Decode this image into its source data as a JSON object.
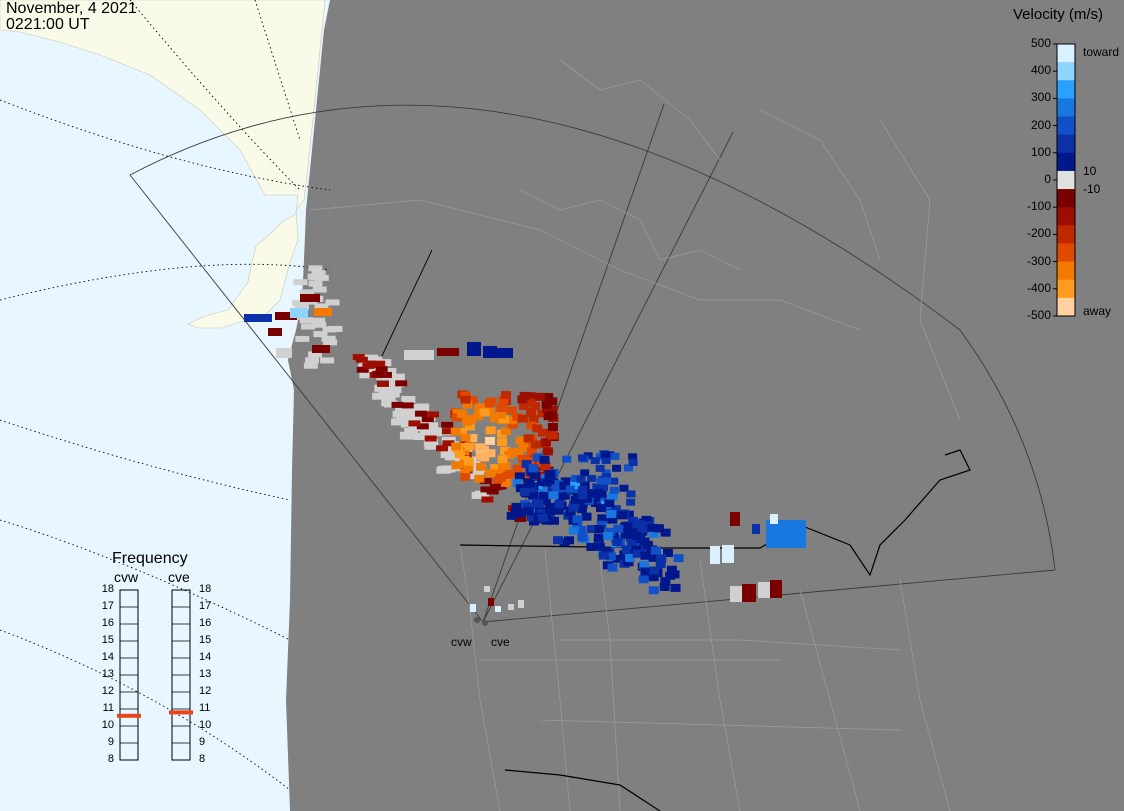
{
  "header": {
    "date": "November, 4 2021",
    "time": "0221:00 UT"
  },
  "legend": {
    "title": "Velocity (m/s)",
    "ticks": [
      "500",
      "400",
      "300",
      "200",
      "100",
      "0",
      "-100",
      "-200",
      "-300",
      "-400",
      "-500"
    ],
    "side_labels": {
      "toward": "toward",
      "away": "away",
      "pos_threshold": "10",
      "neg_threshold": "-10"
    },
    "colors_top_to_bottom": [
      "#d8f0ff",
      "#8fd4ff",
      "#2aa0ff",
      "#1878e0",
      "#1050c8",
      "#0b30a8",
      "#00188c",
      "#e0e0e0",
      "#7a0000",
      "#9c0e00",
      "#c02800",
      "#e04a00",
      "#f27a00",
      "#ff9c20",
      "#ffd0a0"
    ]
  },
  "frequency": {
    "title": "Frequency",
    "columns": [
      {
        "name": "cvw",
        "selected_mhz": 10.6
      },
      {
        "name": "cve",
        "selected_mhz": 10.8
      }
    ],
    "scale": [
      "18",
      "17",
      "16",
      "15",
      "14",
      "13",
      "12",
      "11",
      "10",
      "9",
      "8"
    ],
    "marker_color": "#e8441c"
  },
  "radars": {
    "west": "cvw",
    "east": "cve"
  },
  "map": {
    "ocean_color": "#e8f6ff",
    "land_color": "#fafae8",
    "panel_color": "#808080",
    "scatter_gray": "#d0d0d0"
  }
}
